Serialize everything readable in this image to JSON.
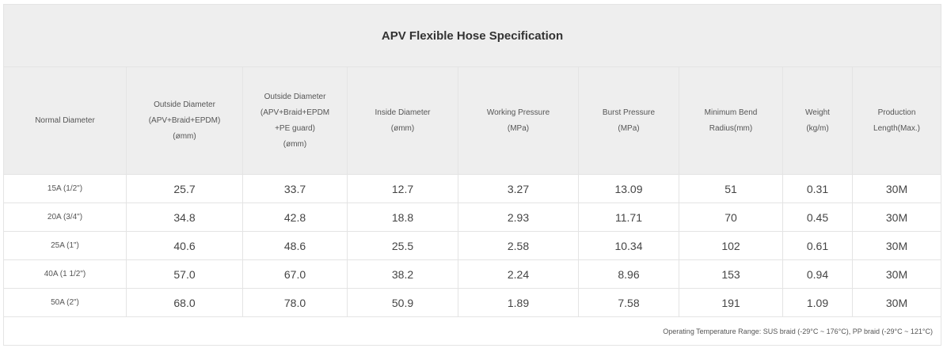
{
  "title": "APV Flexible Hose Specification",
  "headers": [
    [
      "Normal Diameter"
    ],
    [
      "Outside Diameter",
      "(APV+Braid+EPDM)",
      "(ømm)"
    ],
    [
      "Outside Diameter",
      "(APV+Braid+EPDM",
      "+PE guard)",
      "(ømm)"
    ],
    [
      "Inside Diameter",
      "(ømm)"
    ],
    [
      "Working Pressure",
      "(MPa)"
    ],
    [
      "Burst Pressure",
      "(MPa)"
    ],
    [
      "Minimum Bend",
      "Radius(mm)"
    ],
    [
      "Weight",
      "(kg/m)"
    ],
    [
      "Production",
      "Length(Max.)"
    ]
  ],
  "rows": [
    [
      "15A (1/2\")",
      "25.7",
      "33.7",
      "12.7",
      "3.27",
      "13.09",
      "51",
      "0.31",
      "30M"
    ],
    [
      "20A (3/4\")",
      "34.8",
      "42.8",
      "18.8",
      "2.93",
      "11.71",
      "70",
      "0.45",
      "30M"
    ],
    [
      "25A (1\")",
      "40.6",
      "48.6",
      "25.5",
      "2.58",
      "10.34",
      "102",
      "0.61",
      "30M"
    ],
    [
      "40A (1 1/2\")",
      "57.0",
      "67.0",
      "38.2",
      "2.24",
      "8.96",
      "153",
      "0.94",
      "30M"
    ],
    [
      "50A (2\")",
      "68.0",
      "78.0",
      "50.9",
      "1.89",
      "7.58",
      "191",
      "1.09",
      "30M"
    ]
  ],
  "note": "Operating Temperature Range: SUS braid (-29°C ~ 176°C), PP braid (-29°C ~ 121°C)"
}
